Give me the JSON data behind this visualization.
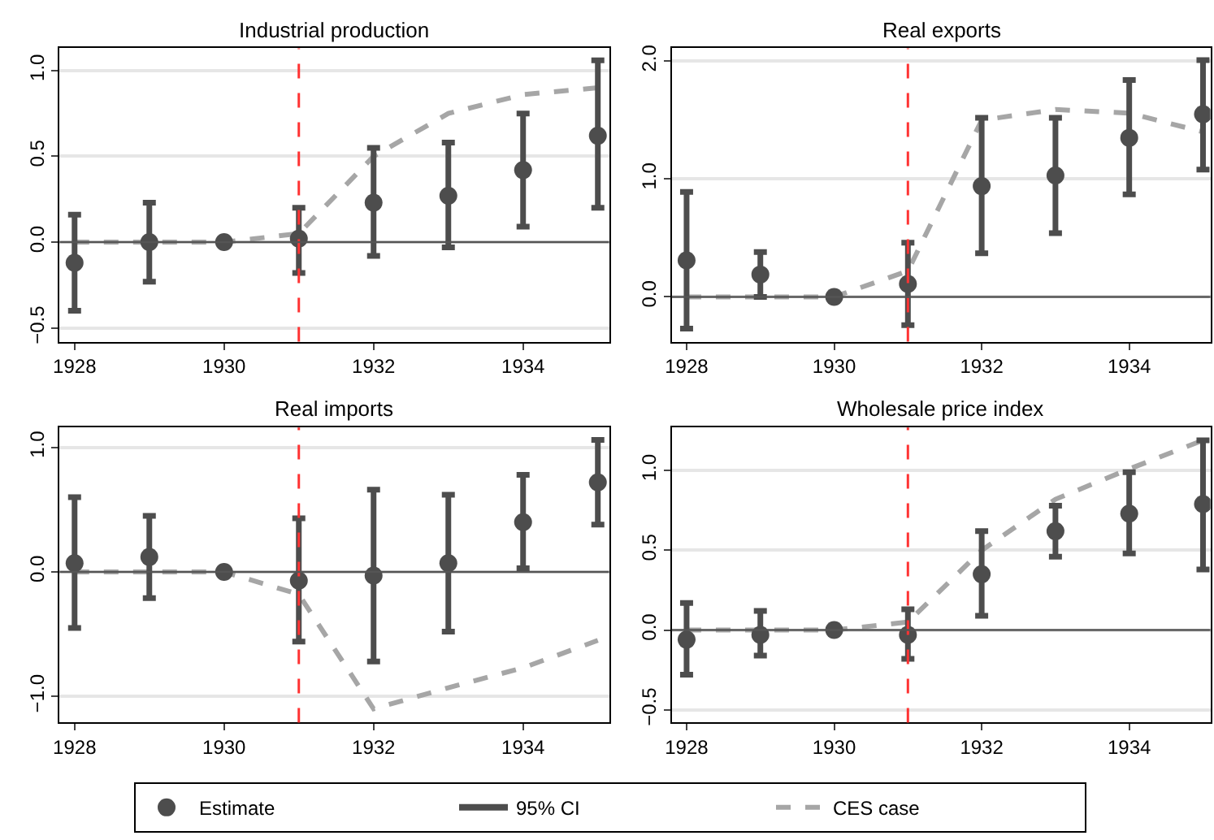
{
  "chart_data": [
    {
      "type": "scatter",
      "title": "Industrial production",
      "x": [
        1928,
        1929,
        1930,
        1931,
        1932,
        1933,
        1934,
        1935
      ],
      "xlim": [
        1927.8,
        1935.15
      ],
      "xticks": [
        1928,
        1930,
        1932,
        1934
      ],
      "ylim": [
        -0.58,
        1.13
      ],
      "yticks": [
        {
          "value": -0.5,
          "label": "−0.5"
        },
        {
          "value": 0,
          "label": "0.0"
        },
        {
          "value": 0.5,
          "label": "0.5"
        },
        {
          "value": 1,
          "label": "1.0"
        }
      ],
      "grid": "y",
      "legend": "bottom",
      "annotations": [
        "95% CI"
      ],
      "ref_lines": [
        {
          "axis": "x",
          "value": 1931,
          "color": "#ff3333",
          "line_style": "dashed"
        },
        {
          "axis": "y",
          "value": 0,
          "color": "#555555",
          "line_style": "solid"
        }
      ],
      "series": [
        {
          "name": "Estimate",
          "color": "#4d4d4d",
          "marker": "circle",
          "values": [
            -0.12,
            0.0,
            0.0,
            0.02,
            0.23,
            0.27,
            0.42,
            0.62
          ],
          "errors": [
            [
              -0.4,
              0.16
            ],
            [
              -0.23,
              0.23
            ],
            null,
            [
              -0.18,
              0.2
            ],
            [
              -0.08,
              0.55
            ],
            [
              -0.03,
              0.58
            ],
            [
              0.09,
              0.75
            ],
            [
              0.2,
              1.06
            ]
          ]
        },
        {
          "name": "CES case",
          "type": "line",
          "color": "#a6a6a6",
          "line_style": "dashed",
          "values": [
            0,
            0,
            0,
            0.05,
            0.5,
            0.75,
            0.86,
            0.9
          ]
        }
      ]
    },
    {
      "type": "scatter",
      "title": "Real exports",
      "x": [
        1928,
        1929,
        1930,
        1931,
        1932,
        1933,
        1934,
        1935
      ],
      "xlim": [
        1927.8,
        1935.1
      ],
      "xticks": [
        1928,
        1930,
        1932,
        1934
      ],
      "ylim": [
        -0.38,
        2.11
      ],
      "yticks": [
        {
          "value": 0,
          "label": "0.0"
        },
        {
          "value": 1,
          "label": "1.0"
        },
        {
          "value": 2,
          "label": "2.0"
        }
      ],
      "grid": "y",
      "ref_lines": [
        {
          "axis": "x",
          "value": 1931,
          "color": "#ff3333",
          "line_style": "dashed"
        },
        {
          "axis": "y",
          "value": 0,
          "color": "#555555",
          "line_style": "solid"
        }
      ],
      "series": [
        {
          "color": "#4d4d4d",
          "marker": "circle",
          "values": [
            0.31,
            0.19,
            0.0,
            0.11,
            0.94,
            1.03,
            1.35,
            1.55
          ],
          "errors": [
            [
              -0.27,
              0.89
            ],
            [
              0.0,
              0.38
            ],
            null,
            [
              -0.24,
              0.46
            ],
            [
              0.37,
              1.52
            ],
            [
              0.54,
              1.52
            ],
            [
              0.87,
              1.84
            ],
            [
              1.08,
              2.01
            ]
          ]
        },
        {
          "type": "line",
          "color": "#a6a6a6",
          "line_style": "dashed",
          "values": [
            0,
            0,
            0,
            0.22,
            1.5,
            1.59,
            1.56,
            1.4
          ]
        }
      ]
    },
    {
      "type": "scatter",
      "title": "Real imports",
      "x": [
        1928,
        1929,
        1930,
        1931,
        1932,
        1933,
        1934,
        1935
      ],
      "xlim": [
        1927.8,
        1935.15
      ],
      "xticks": [
        1928,
        1930,
        1932,
        1934
      ],
      "ylim": [
        -1.21,
        1.16
      ],
      "yticks": [
        {
          "value": -1,
          "label": "−1.0"
        },
        {
          "value": 0,
          "label": "0.0"
        },
        {
          "value": 1,
          "label": "1.0"
        }
      ],
      "grid": "y",
      "ref_lines": [
        {
          "axis": "x",
          "value": 1931,
          "color": "#ff3333",
          "line_style": "dashed"
        },
        {
          "axis": "y",
          "value": 0,
          "color": "#555555",
          "line_style": "solid"
        }
      ],
      "series": [
        {
          "color": "#4d4d4d",
          "marker": "circle",
          "values": [
            0.07,
            0.12,
            0.0,
            -0.07,
            -0.03,
            0.07,
            0.4,
            0.72
          ],
          "errors": [
            [
              -0.45,
              0.6
            ],
            [
              -0.21,
              0.45
            ],
            null,
            [
              -0.56,
              0.43
            ],
            [
              -0.72,
              0.66
            ],
            [
              -0.48,
              0.62
            ],
            [
              0.03,
              0.78
            ],
            [
              0.38,
              1.06
            ]
          ]
        },
        {
          "type": "line",
          "color": "#a6a6a6",
          "line_style": "dashed",
          "values": [
            0,
            0,
            0,
            -0.18,
            -1.1,
            -0.93,
            -0.77,
            -0.55
          ]
        }
      ]
    },
    {
      "type": "scatter",
      "title": "Wholesale price index",
      "x": [
        1928,
        1929,
        1930,
        1931,
        1932,
        1933,
        1934,
        1935
      ],
      "xlim": [
        1927.8,
        1935.1
      ],
      "xticks": [
        1928,
        1930,
        1932,
        1934
      ],
      "ylim": [
        -0.58,
        1.27
      ],
      "yticks": [
        {
          "value": -0.5,
          "label": "−0.5"
        },
        {
          "value": 0,
          "label": "0.0"
        },
        {
          "value": 0.5,
          "label": "0.5"
        },
        {
          "value": 1,
          "label": "1.0"
        }
      ],
      "grid": "y",
      "ref_lines": [
        {
          "axis": "x",
          "value": 1931,
          "color": "#ff3333",
          "line_style": "dashed"
        },
        {
          "axis": "y",
          "value": 0,
          "color": "#555555",
          "line_style": "solid"
        }
      ],
      "series": [
        {
          "color": "#4d4d4d",
          "marker": "circle",
          "values": [
            -0.06,
            -0.03,
            0.0,
            -0.03,
            0.35,
            0.62,
            0.73,
            0.79
          ],
          "errors": [
            [
              -0.28,
              0.17
            ],
            [
              -0.16,
              0.12
            ],
            null,
            [
              -0.18,
              0.13
            ],
            [
              0.09,
              0.62
            ],
            [
              0.46,
              0.78
            ],
            [
              0.48,
              0.99
            ],
            [
              0.38,
              1.19
            ]
          ]
        },
        {
          "type": "line",
          "color": "#a6a6a6",
          "line_style": "dashed",
          "values": [
            0,
            0,
            0,
            0.05,
            0.5,
            0.82,
            1.01,
            1.19
          ]
        }
      ]
    }
  ]
}
